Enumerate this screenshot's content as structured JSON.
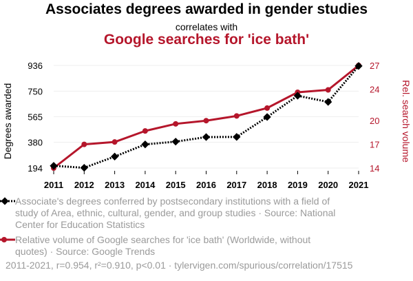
{
  "header": {
    "title": "Associates degrees awarded in gender studies",
    "correlates": "correlates with",
    "subtitle": "Google searches for 'ice bath'"
  },
  "colors": {
    "series1": "#000000",
    "series2": "#b5162b",
    "legend_text": "#9a9a9a",
    "grid": "#eeeeee"
  },
  "chart_data": {
    "type": "line",
    "x": [
      2011,
      2012,
      2013,
      2014,
      2015,
      2016,
      2017,
      2018,
      2019,
      2020,
      2021
    ],
    "x_ticks": [
      "2011",
      "2012",
      "2013",
      "2014",
      "2015",
      "2016",
      "2017",
      "2018",
      "2019",
      "2020",
      "2021"
    ],
    "ylabel": "Degrees awarded",
    "y2label": "Rel. search volume",
    "ylim": [
      194,
      936
    ],
    "y_ticks": [
      194,
      380,
      565,
      750,
      936
    ],
    "y2lim": [
      14,
      27
    ],
    "y2_ticks": [
      14,
      17,
      20,
      24,
      27
    ],
    "grid": true,
    "series": [
      {
        "name": "Associate's degrees conferred by postsecondary institutions with a field of study of Area, ethnic, cultural, gender, and group studies · Source: National Center for Education Statistics",
        "axis": "left",
        "style": "dotted, diamond markers",
        "values": [
          210,
          196,
          277,
          365,
          385,
          418,
          419,
          563,
          717,
          672,
          932
        ]
      },
      {
        "name": "Relative volume of Google searches for 'ice bath' (Worldwide, without quotes) · Source: Google Trends",
        "axis": "right",
        "style": "solid, circle markers",
        "values": [
          14.0,
          17.0,
          17.3,
          18.7,
          19.6,
          20.0,
          20.6,
          21.6,
          23.6,
          23.9,
          27.0
        ]
      }
    ]
  },
  "footer": "2011-2021, r=0.954, r²=0.910, p<0.01 · tylervigen.com/spurious/correlation/17515"
}
